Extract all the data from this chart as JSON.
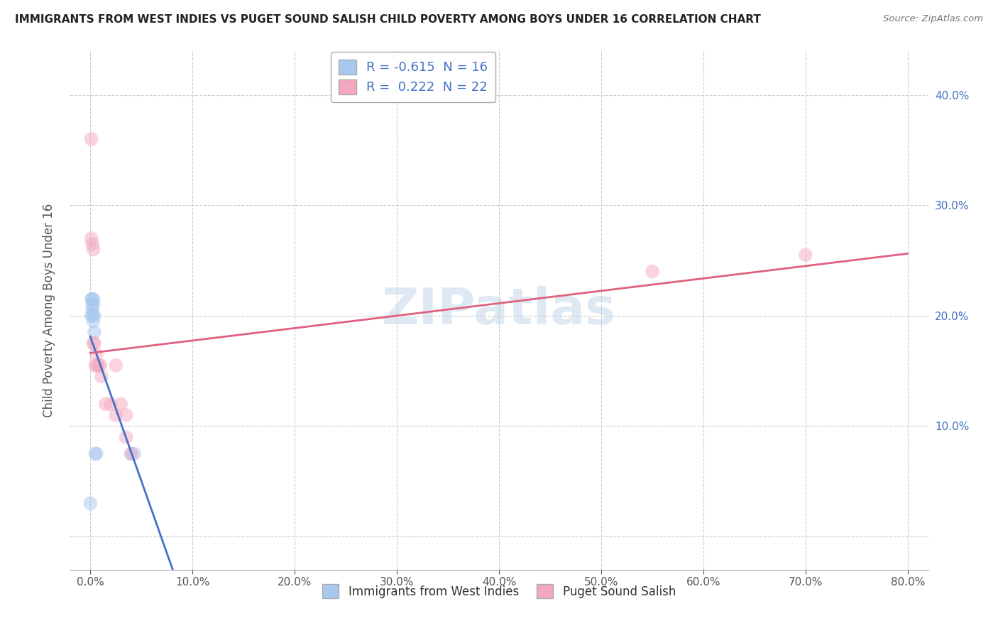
{
  "title": "IMMIGRANTS FROM WEST INDIES VS PUGET SOUND SALISH CHILD POVERTY AMONG BOYS UNDER 16 CORRELATION CHART",
  "source": "Source: ZipAtlas.com",
  "ylabel": "Child Poverty Among Boys Under 16",
  "watermark": "ZIPatlas",
  "blue_R": -0.615,
  "blue_N": 16,
  "pink_R": 0.222,
  "pink_N": 22,
  "blue_color": "#a8c8f0",
  "blue_line_color": "#4472c4",
  "pink_color": "#f4a8c0",
  "pink_line_color": "#e06080",
  "blue_points_x": [
    0.0,
    0.001,
    0.001,
    0.002,
    0.002,
    0.002,
    0.002,
    0.003,
    0.003,
    0.003,
    0.004,
    0.004,
    0.005,
    0.006,
    0.04,
    0.043
  ],
  "blue_points_y": [
    0.03,
    0.215,
    0.2,
    0.21,
    0.205,
    0.215,
    0.2,
    0.215,
    0.21,
    0.195,
    0.2,
    0.185,
    0.075,
    0.075,
    0.075,
    0.075
  ],
  "pink_points_x": [
    0.001,
    0.001,
    0.002,
    0.003,
    0.003,
    0.004,
    0.005,
    0.006,
    0.007,
    0.008,
    0.01,
    0.011,
    0.015,
    0.02,
    0.025,
    0.025,
    0.03,
    0.035,
    0.035,
    0.04,
    0.55,
    0.7
  ],
  "pink_points_y": [
    0.36,
    0.27,
    0.265,
    0.26,
    0.175,
    0.175,
    0.155,
    0.165,
    0.155,
    0.155,
    0.155,
    0.145,
    0.12,
    0.12,
    0.155,
    0.11,
    0.12,
    0.11,
    0.09,
    0.075,
    0.24,
    0.255
  ],
  "xlim": [
    -0.02,
    0.82
  ],
  "ylim": [
    -0.03,
    0.44
  ],
  "xticks": [
    0.0,
    0.1,
    0.2,
    0.3,
    0.4,
    0.5,
    0.6,
    0.7,
    0.8
  ],
  "xticklabels": [
    "0.0%",
    "10.0%",
    "20.0%",
    "30.0%",
    "40.0%",
    "50.0%",
    "60.0%",
    "70.0%",
    "80.0%"
  ],
  "yticks": [
    0.0,
    0.1,
    0.2,
    0.3,
    0.4
  ],
  "yticklabels_right": [
    "",
    "10.0%",
    "20.0%",
    "30.0%",
    "40.0%"
  ],
  "background_color": "#ffffff",
  "grid_color": "#cccccc",
  "legend_label_blue": "Immigrants from West Indies",
  "legend_label_pink": "Puget Sound Salish",
  "marker_size": 200,
  "marker_alpha": 0.5,
  "line_width": 2.0
}
